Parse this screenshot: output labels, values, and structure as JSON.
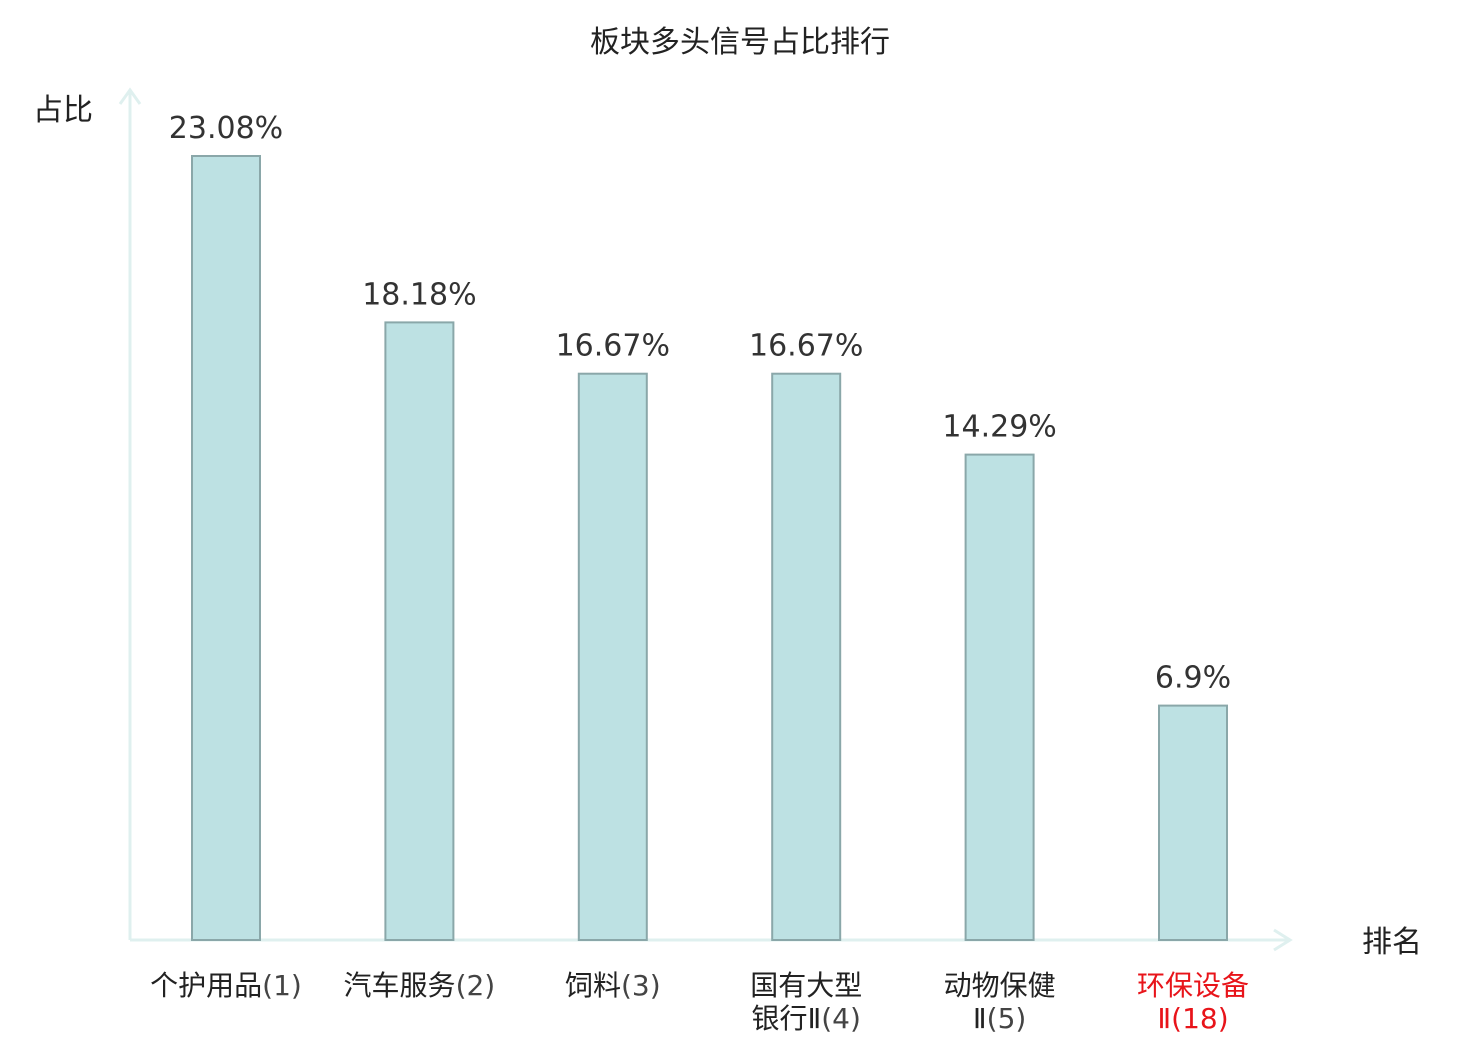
{
  "chart_data": {
    "type": "bar",
    "title": "板块多头信号占比排行",
    "ylabel": "占比",
    "xlabel": "排名",
    "ylim": [
      0,
      23.08
    ],
    "unit": "%",
    "grid": false,
    "categories": [
      {
        "name_lines": [
          "个护用品"
        ],
        "rank_text": "(1)",
        "highlight": false
      },
      {
        "name_lines": [
          "汽车服务"
        ],
        "rank_text": "(2)",
        "highlight": false
      },
      {
        "name_lines": [
          "饲料"
        ],
        "rank_text": "(3)",
        "highlight": false
      },
      {
        "name_lines": [
          "国有大型",
          "银行Ⅱ"
        ],
        "rank_text": "(4)",
        "highlight": false
      },
      {
        "name_lines": [
          "动物保健",
          "Ⅱ"
        ],
        "rank_text": "(5)",
        "highlight": false
      },
      {
        "name_lines": [
          "环保设备",
          "Ⅱ"
        ],
        "rank_text": "(18)",
        "highlight": true
      }
    ],
    "values": [
      23.08,
      18.18,
      16.67,
      16.67,
      14.29,
      6.9
    ],
    "value_labels": [
      "23.08%",
      "18.18%",
      "16.67%",
      "16.67%",
      "14.29%",
      "6.9%"
    ],
    "colors": {
      "bar_fill": "#bde1e3",
      "bar_stroke": "#8aa7a9",
      "axis": "#dff0ef",
      "text": "#222222",
      "rank_text": "#444444",
      "highlight": "#e8141a"
    }
  }
}
